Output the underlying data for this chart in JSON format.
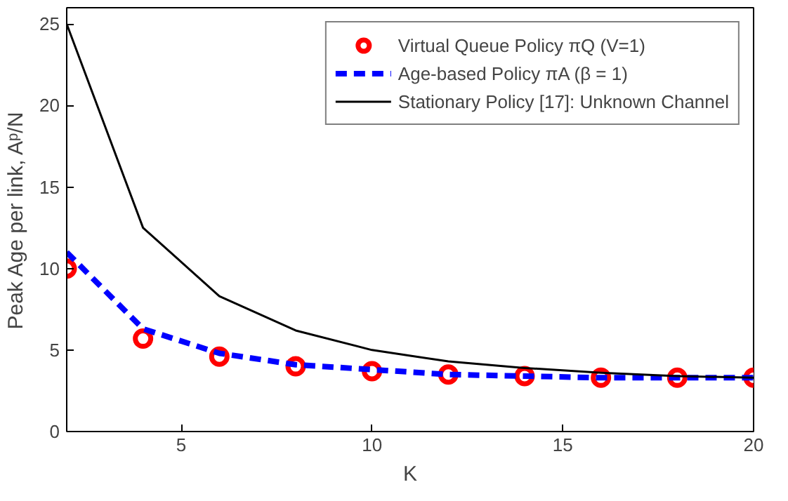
{
  "chart_data": {
    "type": "line",
    "xlabel": "K",
    "ylabel": "Peak Age per link, Aᵖ/N",
    "x": [
      2,
      4,
      6,
      8,
      10,
      12,
      14,
      16,
      18,
      20
    ],
    "xlim": [
      2,
      20
    ],
    "ylim": [
      0,
      26
    ],
    "xticks": [
      5,
      10,
      15,
      20
    ],
    "yticks": [
      0,
      5,
      10,
      15,
      20,
      25
    ],
    "grid": false,
    "legend": "top right",
    "series": [
      {
        "name": "Virtual Queue Policy πQ (V=1)",
        "type": "scatter",
        "marker": "circle",
        "color": "#ff0000",
        "values": [
          10,
          5.7,
          4.6,
          4.0,
          3.7,
          3.5,
          3.4,
          3.3,
          3.3,
          3.3
        ]
      },
      {
        "name": "Age-based Policy πA (β = 1)",
        "line_style": "dashed",
        "color": "#0000ff",
        "values": [
          11,
          6.3,
          4.8,
          4.1,
          3.8,
          3.5,
          3.4,
          3.3,
          3.3,
          3.3
        ]
      },
      {
        "name": "Stationary Policy [17]: Unknown Channel",
        "line_style": "solid",
        "color": "#000000",
        "values": [
          25,
          12.5,
          8.3,
          6.2,
          5.0,
          4.3,
          3.9,
          3.6,
          3.4,
          3.3
        ]
      }
    ]
  }
}
